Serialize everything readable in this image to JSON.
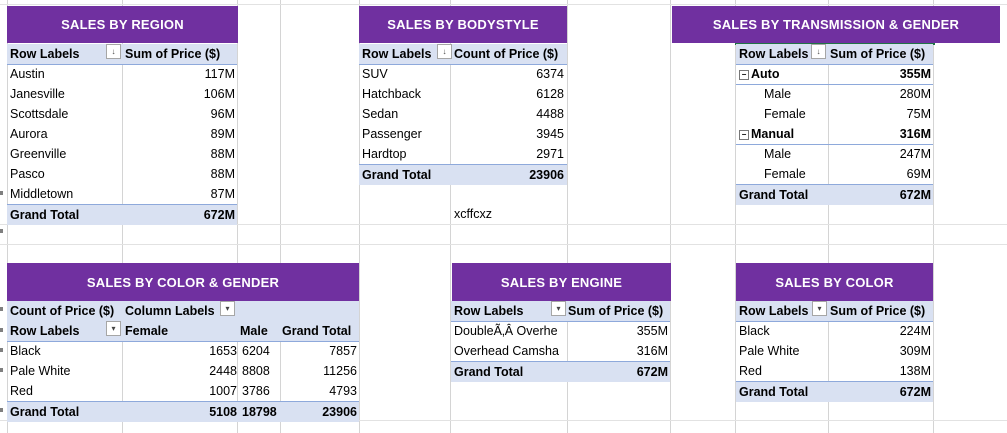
{
  "region": {
    "title": "SALES BY REGION",
    "col1": "Row Labels",
    "col2": "Sum of Price ($)",
    "rows": [
      {
        "label": "Austin",
        "value": "117M"
      },
      {
        "label": "Janesville",
        "value": "106M"
      },
      {
        "label": "Scottsdale",
        "value": "96M"
      },
      {
        "label": "Aurora",
        "value": "89M"
      },
      {
        "label": "Greenville",
        "value": "88M"
      },
      {
        "label": "Pasco",
        "value": "88M"
      },
      {
        "label": "Middletown",
        "value": "87M"
      }
    ],
    "total_label": "Grand Total",
    "total_value": "672M"
  },
  "bodystyle": {
    "title": "SALES BY BODYSTYLE",
    "col1": "Row Labels",
    "col2": "Count of Price ($)",
    "rows": [
      {
        "label": "SUV",
        "value": "6374"
      },
      {
        "label": "Hatchback",
        "value": "6128"
      },
      {
        "label": "Sedan",
        "value": "4488"
      },
      {
        "label": "Passenger",
        "value": "3945"
      },
      {
        "label": "Hardtop",
        "value": "2971"
      }
    ],
    "total_label": "Grand Total",
    "total_value": "23906",
    "stray_cell": "xcffcxz"
  },
  "transmission": {
    "title": "SALES BY TRANSMISSION & GENDER",
    "col1": "Row Labels",
    "col2": "Sum of Price ($)",
    "groups": [
      {
        "label": "Auto",
        "value": "355M",
        "children": [
          {
            "label": "Male",
            "value": "280M"
          },
          {
            "label": "Female",
            "value": "75M"
          }
        ]
      },
      {
        "label": "Manual",
        "value": "316M",
        "children": [
          {
            "label": "Male",
            "value": "247M"
          },
          {
            "label": "Female",
            "value": "69M"
          }
        ]
      }
    ],
    "total_label": "Grand Total",
    "total_value": "672M"
  },
  "color_gender": {
    "title": "SALES BY COLOR & GENDER",
    "value_header": "Count of Price ($)",
    "col_labels": "Column Labels",
    "row_labels": "Row Labels",
    "cols": [
      "Female",
      "Male",
      "Grand Total"
    ],
    "rows": [
      {
        "label": "Black",
        "female": "1653",
        "male": "6204",
        "total": "7857"
      },
      {
        "label": "Pale White",
        "female": "2448",
        "male": "8808",
        "total": "11256"
      },
      {
        "label": "Red",
        "female": "1007",
        "male": "3786",
        "total": "4793"
      }
    ],
    "total_label": "Grand Total",
    "total_female": "5108",
    "total_male": "18798",
    "total_all": "23906"
  },
  "engine": {
    "title": "SALES BY ENGINE",
    "col1": "Row Labels",
    "col2": "Sum of Price ($)",
    "rows": [
      {
        "label": "DoubleÃ‚Â Overhe",
        "value": "355M"
      },
      {
        "label": "Overhead Camsha",
        "value": "316M"
      }
    ],
    "total_label": "Grand Total",
    "total_value": "672M"
  },
  "color": {
    "title": "SALES BY COLOR",
    "col1": "Row Labels",
    "col2": "Sum of Price ($)",
    "rows": [
      {
        "label": "Black",
        "value": "224M"
      },
      {
        "label": "Pale White",
        "value": "309M"
      },
      {
        "label": "Red",
        "value": "138M"
      }
    ],
    "total_label": "Grand Total",
    "total_value": "672M"
  },
  "icons": {
    "filter": "filter-dropdown-icon",
    "sort": "sort-descending-icon",
    "collapse": "collapse-minus-icon"
  },
  "colors": {
    "header_bg": "#7030a0",
    "header_row_bg": "#d9e1f2",
    "border": "#8ea9db"
  }
}
